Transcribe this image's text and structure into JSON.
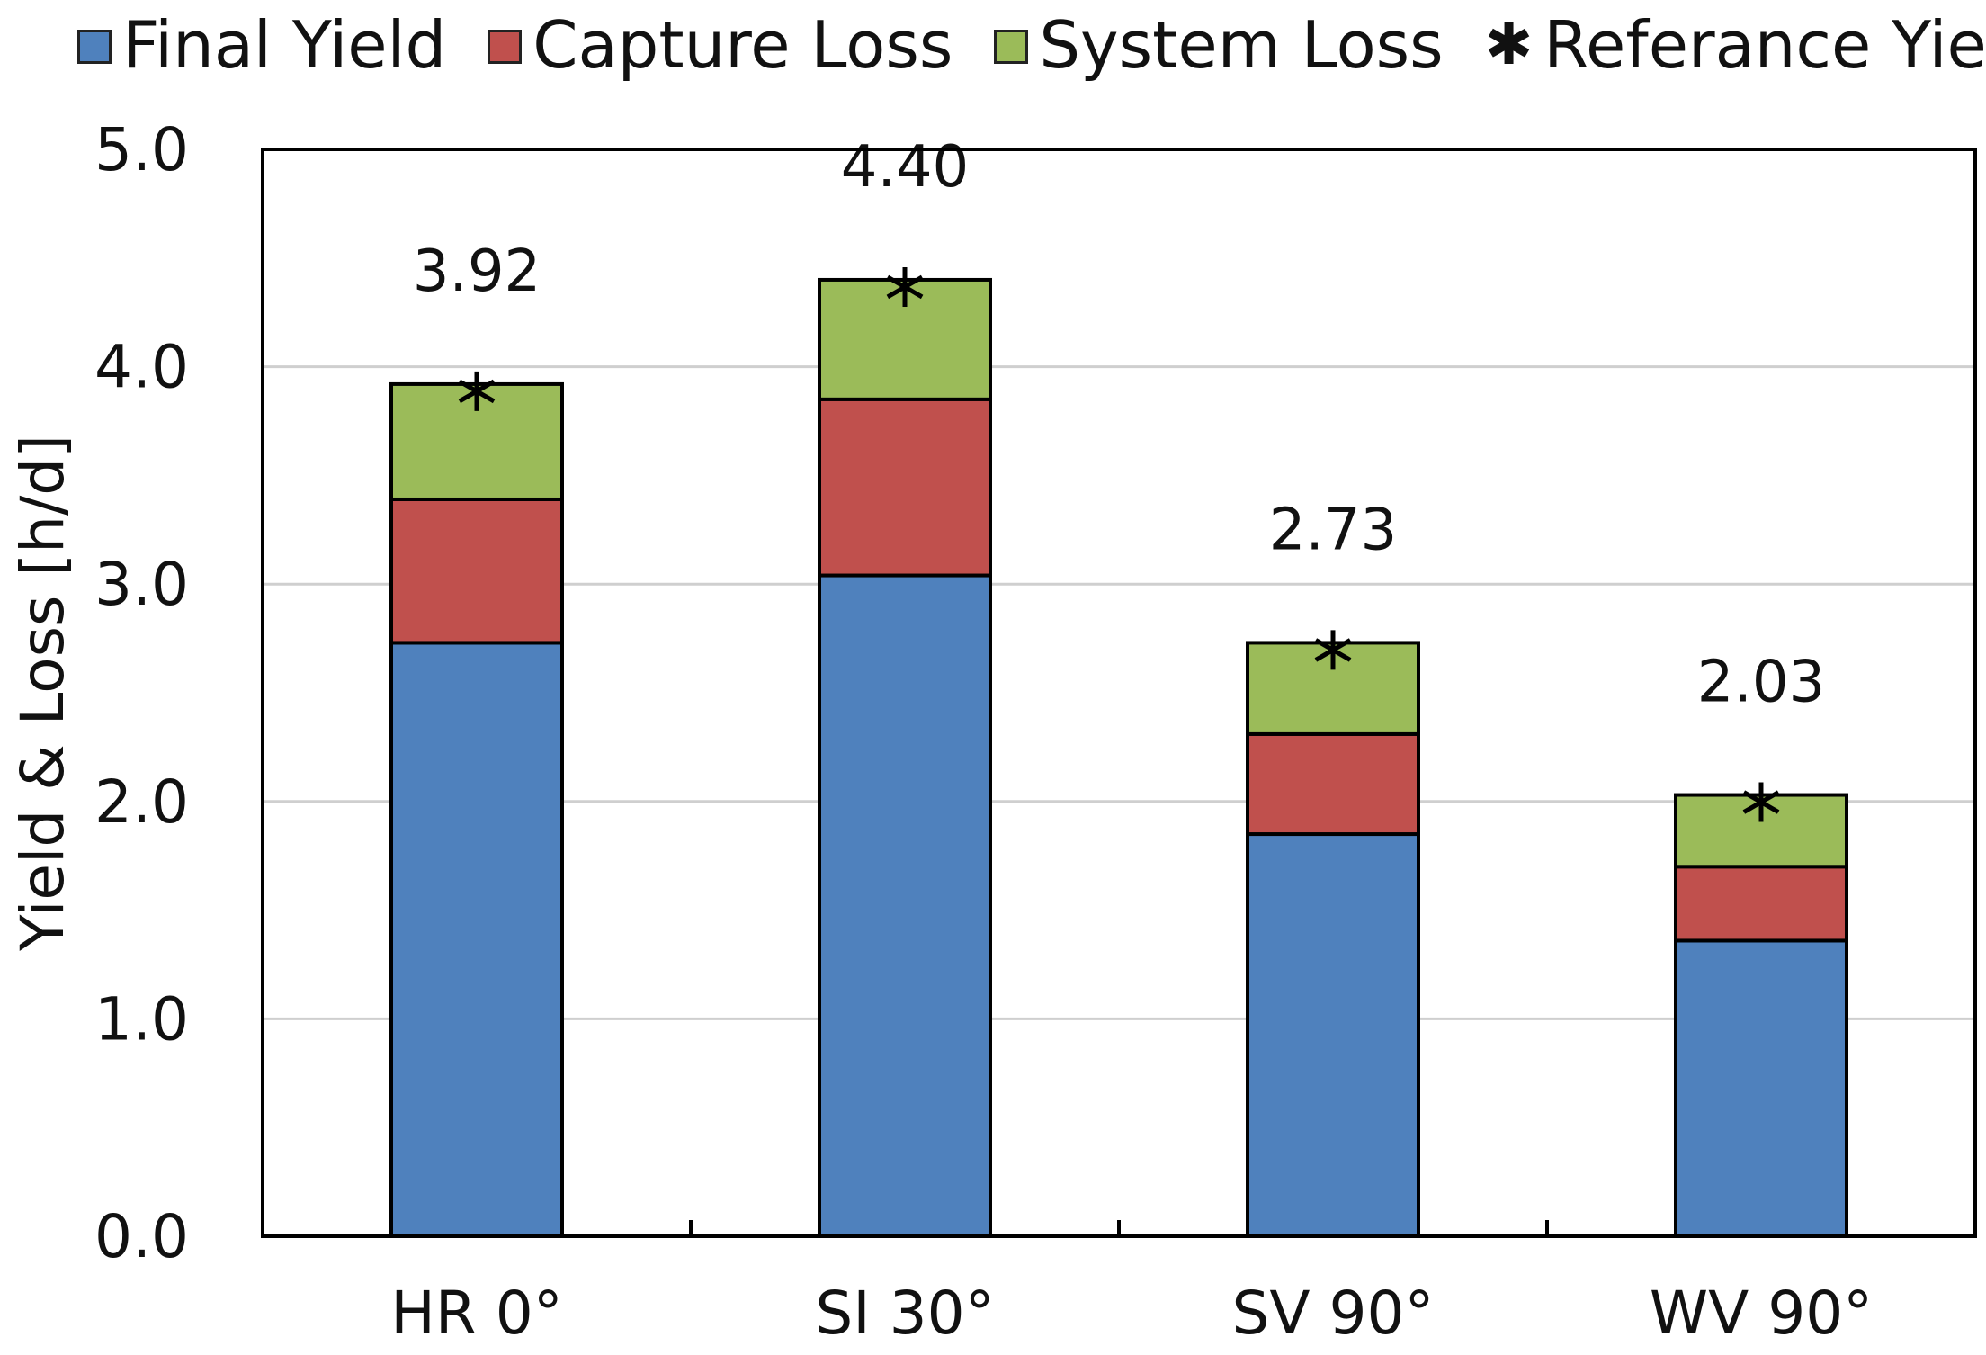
{
  "chart_data": {
    "type": "bar",
    "stacked": true,
    "categories": [
      "HR 0°",
      "SI 30°",
      "SV 90°",
      "WV 90°"
    ],
    "series": [
      {
        "name": "Final Yield",
        "color": "#4F81BD",
        "values": [
          2.73,
          3.04,
          1.85,
          1.36
        ]
      },
      {
        "name": "Capture Loss",
        "color": "#C0504D",
        "values": [
          0.66,
          0.81,
          0.46,
          0.34
        ]
      },
      {
        "name": "System Loss",
        "color": "#9BBB59",
        "values": [
          0.53,
          0.55,
          0.42,
          0.33
        ]
      }
    ],
    "reference": {
      "name": "Referance Yield",
      "marker": "asterisk",
      "values": [
        3.92,
        4.4,
        2.73,
        2.03
      ]
    },
    "data_labels": [
      "3.92",
      "4.40",
      "2.73",
      "2.03"
    ],
    "ylabel": "Yield & Loss [h/d]",
    "xlabel": "",
    "ylim": [
      0,
      5
    ],
    "yticks": [
      "0.0",
      "1.0",
      "2.0",
      "3.0",
      "4.0",
      "5.0"
    ],
    "grid": true,
    "legend_position": "top"
  }
}
